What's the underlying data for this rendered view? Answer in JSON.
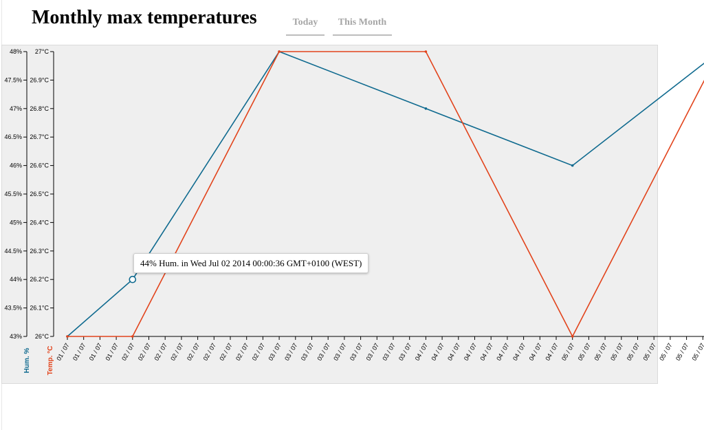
{
  "header": {
    "title": "Monthly max temperatures",
    "tabs": [
      {
        "label": "Today"
      },
      {
        "label": "This Month"
      }
    ]
  },
  "colors": {
    "humidity": "#0f6a8f",
    "temperature": "#e2431b",
    "plot_background": "#efefef"
  },
  "tooltip": {
    "text": "44% Hum. in Wed Jul 02 2014 00:00:36 GMT+0100 (WEST)"
  },
  "chart_data": {
    "type": "line",
    "grid": false,
    "x": [
      "01 / 07",
      "01 / 07",
      "01 / 07",
      "01 / 07",
      "02 / 07",
      "02 / 07",
      "02 / 07",
      "02 / 07",
      "02 / 07",
      "02 / 07",
      "02 / 07",
      "02 / 07",
      "02 / 07",
      "03 / 07",
      "03 / 07",
      "03 / 07",
      "03 / 07",
      "03 / 07",
      "03 / 07",
      "03 / 07",
      "03 / 07",
      "03 / 07",
      "04 / 07",
      "04 / 07",
      "04 / 07",
      "04 / 07",
      "04 / 07",
      "04 / 07",
      "04 / 07",
      "04 / 07",
      "04 / 07",
      "05 / 07",
      "05 / 07",
      "05 / 07",
      "05 / 07",
      "05 / 07",
      "05 / 07",
      "05 / 07",
      "05 / 07",
      "05 / 07",
      "06 / 07"
    ],
    "series": [
      {
        "name": "Hum. %",
        "axis": "left",
        "points": [
          {
            "x": "01 / 07",
            "y": 43
          },
          {
            "x": "02 / 07",
            "y": 44
          },
          {
            "x": "03 / 07",
            "y": 48
          },
          {
            "x": "04 / 07",
            "y": 47
          },
          {
            "x": "05 / 07",
            "y": 46
          },
          {
            "x": "06 / 07",
            "y": 48
          }
        ]
      },
      {
        "name": "Temp. °C",
        "axis": "right",
        "points": [
          {
            "x": "01 / 07",
            "y": 26
          },
          {
            "x": "02 / 07",
            "y": 26
          },
          {
            "x": "03 / 07",
            "y": 27
          },
          {
            "x": "04 / 07",
            "y": 27
          },
          {
            "x": "05 / 07",
            "y": 26
          },
          {
            "x": "06 / 07",
            "y": 27
          }
        ]
      }
    ],
    "humidity_axis": {
      "label": "Hum. %",
      "range": [
        43,
        48
      ],
      "ticks": [
        "43%",
        "43.5%",
        "44%",
        "44.5%",
        "45%",
        "45.5%",
        "46%",
        "46.5%",
        "47%",
        "47.5%",
        "48%"
      ]
    },
    "temperature_axis": {
      "label": "Temp. °C",
      "range": [
        26,
        27
      ],
      "ticks": [
        "26°C",
        "26.1°C",
        "26.2°C",
        "26.3°C",
        "26.4°C",
        "26.5°C",
        "26.6°C",
        "26.7°C",
        "26.8°C",
        "26.9°C",
        "27°C"
      ]
    },
    "highlight": {
      "series": "Hum. %",
      "x": "02 / 07",
      "y": 44
    }
  }
}
